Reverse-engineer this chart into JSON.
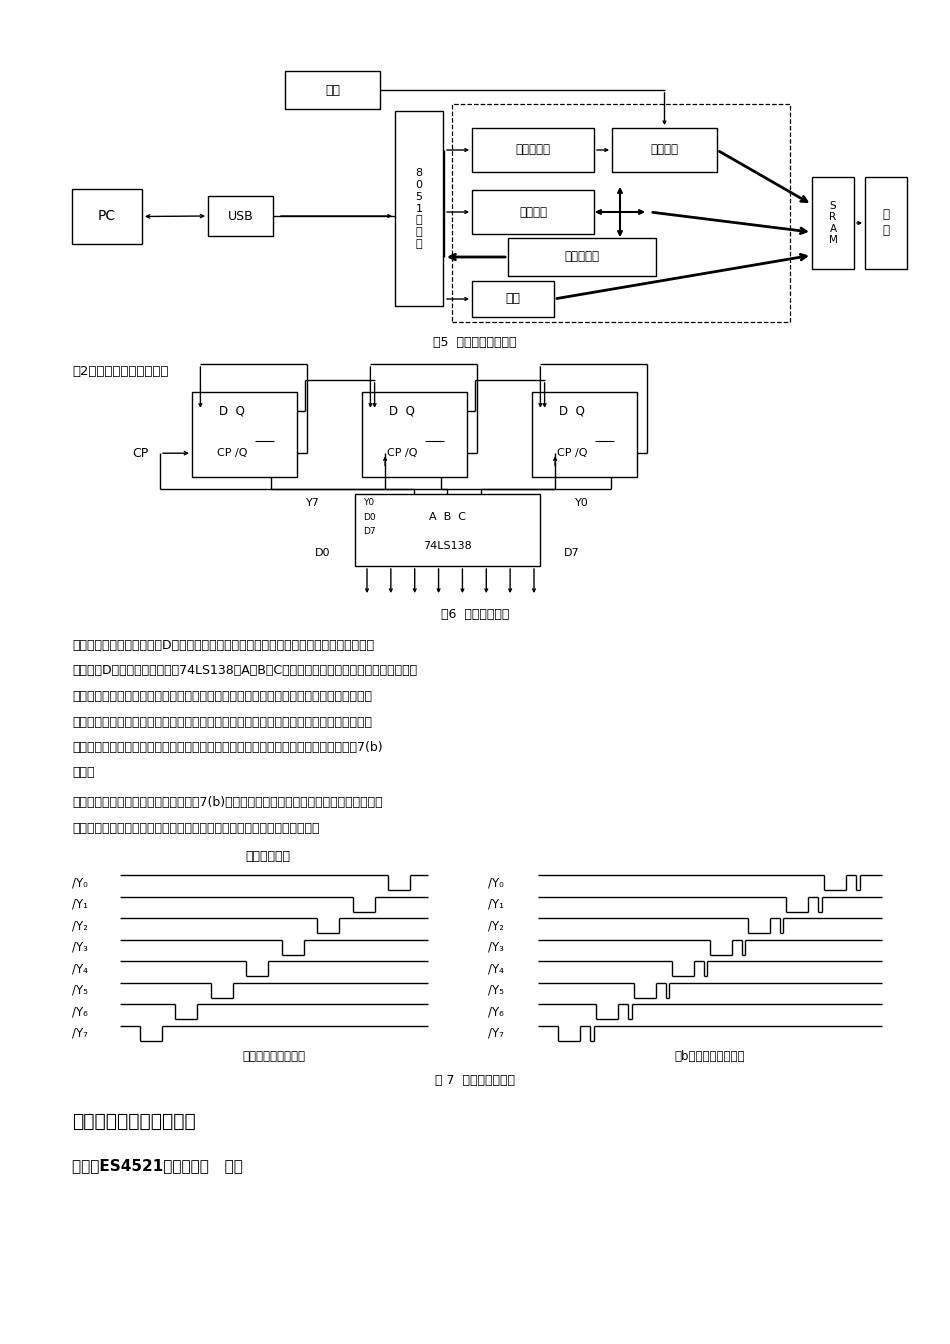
{
  "bg_color": "#ffffff",
  "page_width": 9.5,
  "page_height": 13.44,
  "fig5_caption": "图5  数据发生器原理图",
  "fig6_caption": "图6  毛刺产生电路",
  "fig7_caption": "图 7  译码电路的输出",
  "section2_title": "（2）毛刺发生电路原理：",
  "para1_lines": [
    "　　毛刺产生电路是由三个D触发器构成。由于硬件电路输入与输出之间有一定的延时，当",
    "电路中的D触发器速度较慢时，74LS138的A、B、C三个输入信号的延时不一致，有可能在输",
    "出端出现引起错误动作的窄脉冲，而逻辑分析仪的正常采样方式观察不到该窄脉冲，这时要",
    "使用毛刺检测功能来观察毛刺。调节数据发生器的输出信号延时，同时逻辑分析仪工作在毛",
    "刺锁定方式下，在波形窗口中开启毛刺显示，即可观察到译码器输出端上的毛刺，如图7(b)",
    "所示。"
  ],
  "para2_lines": [
    "　　由图可见，译码器的输出波形与图7(b)完全相同，只是在检测出毛刺的地方给出了毛刺",
    "的标记，表示此时该信号上出现了窄脉冲，可能会引起电路工作的不正常。"
  ],
  "timing_intro": "时序图如下：",
  "left_panel_label": "译码电路理想输出图",
  "right_panel_label": "（b）毛刺信号的观察",
  "section3_title": "三、实验设备及其说明：",
  "section3_sub": "（一）ES4521逻辑分析仪   一台"
}
